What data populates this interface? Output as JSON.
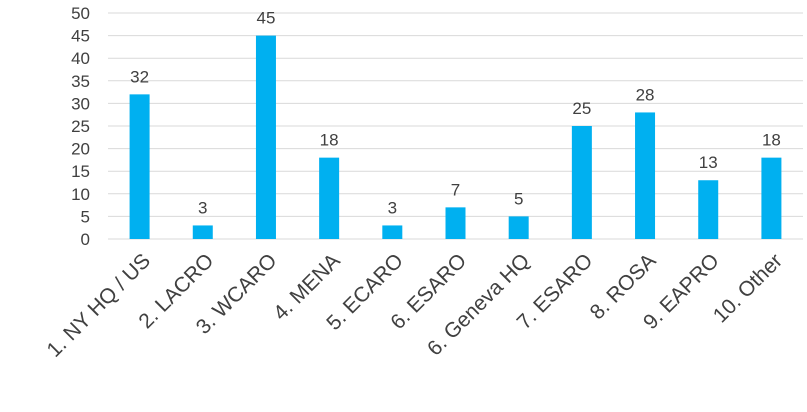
{
  "chart_data": {
    "type": "bar",
    "title": "",
    "xlabel": "",
    "ylabel": "",
    "categories": [
      "1. NY HQ / US",
      "2. LACRO",
      "3. WCARO",
      "4. MENA",
      "5. ECARO",
      "6. ESARO",
      "6. Geneva HQ",
      "7. ESARO",
      "8. ROSA",
      "9. EAPRO",
      "10. Other"
    ],
    "values": [
      32,
      3,
      45,
      18,
      3,
      7,
      5,
      25,
      28,
      13,
      18
    ],
    "ylim": [
      0,
      50
    ],
    "yticks": [
      0,
      5,
      10,
      15,
      20,
      25,
      30,
      35,
      40,
      45,
      50
    ],
    "grid": true,
    "legend": "none",
    "data_labels": true,
    "bar_color": "#00b0f0",
    "grid_color": "#d9d9d9",
    "text_color": "#404040"
  }
}
